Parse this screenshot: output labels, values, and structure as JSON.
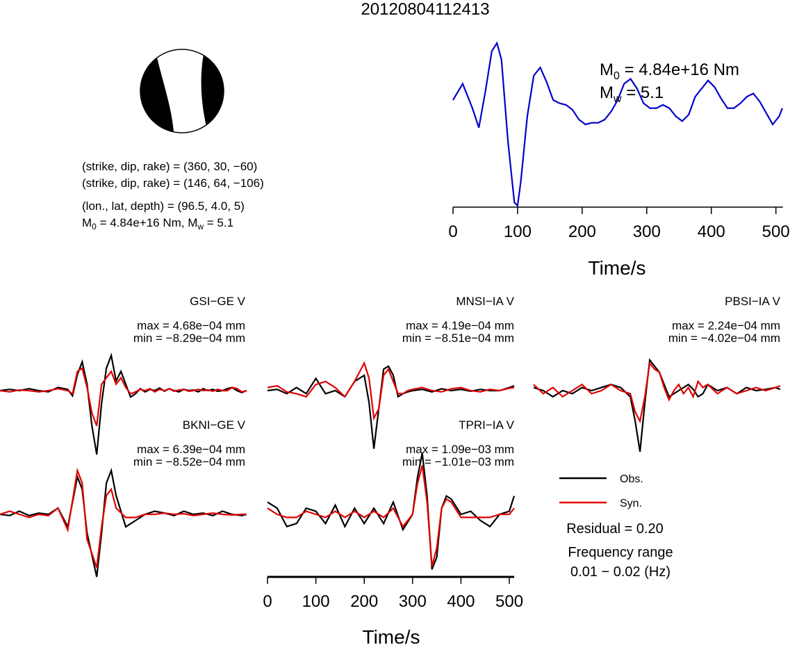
{
  "title": "20120804112413",
  "beachball": {
    "planes": [
      "(strike, dip, rake) = (360, 30, −60)",
      "(strike, dip, rake) = (146, 64, −106)"
    ],
    "location": "(lon., lat, depth) = (96.5, 4.0, 5)",
    "moment_line": {
      "m0_prefix": "M",
      "m0_sub": "0",
      "m0_val": " = 4.84e+16 Nm, M",
      "mw_sub": "w",
      "mw_val": " = 5.1"
    }
  },
  "stf": {
    "m0": {
      "base": "M",
      "sub": "0",
      "value": " = 4.84e+16 Nm"
    },
    "mw": {
      "base": "M",
      "sub": "w",
      "value": " = 5.1"
    }
  },
  "legend": {
    "obs_label": "Obs.",
    "syn_label": "Syn.",
    "residual": "Residual = 0.20",
    "freq_title": "Frequency range",
    "freq_value": "0.01 − 0.02 (Hz)"
  },
  "colors": {
    "observed": "#000000",
    "synthetic": "#e00000",
    "stf": "#0000cc"
  },
  "chart_data": [
    {
      "type": "line",
      "name": "source-time-function",
      "xlabel": "Time/s",
      "xlim": [
        0,
        510
      ],
      "x_ticks": [
        0,
        100,
        200,
        300,
        400,
        500
      ],
      "x_tick_labels": [
        "0",
        "100",
        "200",
        "300",
        "400",
        "500"
      ],
      "x": [
        0,
        15,
        30,
        40,
        50,
        60,
        68,
        75,
        85,
        95,
        100,
        105,
        115,
        125,
        135,
        145,
        155,
        165,
        175,
        185,
        195,
        205,
        215,
        225,
        235,
        245,
        255,
        265,
        275,
        285,
        295,
        305,
        315,
        325,
        335,
        345,
        355,
        365,
        375,
        385,
        395,
        405,
        415,
        425,
        435,
        445,
        455,
        465,
        475,
        485,
        495,
        505,
        510
      ],
      "series": [
        {
          "values": [
            0.65,
            0.75,
            0.6,
            0.48,
            0.7,
            0.95,
            1.0,
            0.9,
            0.4,
            0.02,
            0.0,
            0.15,
            0.55,
            0.8,
            0.85,
            0.76,
            0.65,
            0.63,
            0.62,
            0.59,
            0.53,
            0.5,
            0.51,
            0.51,
            0.53,
            0.58,
            0.65,
            0.75,
            0.78,
            0.72,
            0.63,
            0.6,
            0.6,
            0.62,
            0.6,
            0.55,
            0.52,
            0.56,
            0.67,
            0.72,
            0.77,
            0.73,
            0.66,
            0.6,
            0.6,
            0.63,
            0.67,
            0.69,
            0.64,
            0.57,
            0.5,
            0.55,
            0.6
          ]
        }
      ]
    },
    {
      "type": "line",
      "name": "waveform-fits",
      "xlabel": "Time/s",
      "xlim": [
        0,
        510
      ],
      "x_ticks": [
        0,
        100,
        200,
        300,
        400,
        500
      ],
      "x_tick_labels": [
        "0",
        "100",
        "200",
        "300",
        "400",
        "500"
      ],
      "series_names": [
        "Obs.",
        "Syn."
      ],
      "panels": [
        {
          "station": "GSI−GE V",
          "max": "max = 4.68e−04 mm",
          "min": "min = −8.29e−04 mm",
          "x": [
            0,
            20,
            40,
            60,
            80,
            100,
            120,
            140,
            150,
            160,
            170,
            180,
            190,
            200,
            210,
            220,
            230,
            240,
            250,
            260,
            270,
            280,
            290,
            300,
            310,
            320,
            330,
            340,
            350,
            360,
            370,
            380,
            390,
            400,
            410,
            420,
            430,
            440,
            450,
            460,
            470,
            480,
            490,
            500,
            510
          ],
          "obs": [
            0.0,
            0.02,
            0.0,
            0.03,
            0.0,
            -0.02,
            0.05,
            0.02,
            -0.08,
            0.25,
            0.45,
            0.1,
            -0.55,
            -1.0,
            -0.2,
            0.35,
            0.55,
            0.15,
            0.3,
            0.1,
            -0.1,
            -0.05,
            0.03,
            -0.02,
            0.02,
            0.0,
            0.04,
            -0.01,
            0.03,
            0.0,
            -0.02,
            0.02,
            0.0,
            0.01,
            -0.02,
            0.03,
            0.0,
            0.02,
            -0.01,
            0.0,
            0.03,
            0.05,
            0.0,
            -0.03,
            0.0
          ],
          "syn": [
            0.0,
            -0.02,
            0.01,
            0.0,
            -0.02,
            0.0,
            0.03,
            0.0,
            -0.05,
            0.3,
            0.35,
            0.05,
            -0.35,
            -0.55,
            0.1,
            0.2,
            0.3,
            0.1,
            0.2,
            0.05,
            -0.05,
            -0.02,
            0.02,
            0.0,
            0.03,
            -0.02,
            0.02,
            0.0,
            0.03,
            -0.01,
            0.01,
            0.02,
            -0.01,
            0.0,
            0.02,
            0.0,
            0.01,
            -0.01,
            0.02,
            0.0,
            0.0,
            0.05,
            0.03,
            -0.02,
            0.0
          ]
        },
        {
          "station": "MNSI−IA V",
          "max": "max = 4.19e−04 mm",
          "min": "min = −8.51e−04 mm",
          "x": [
            0,
            20,
            40,
            60,
            80,
            100,
            120,
            140,
            160,
            180,
            200,
            210,
            220,
            230,
            240,
            250,
            260,
            270,
            280,
            290,
            300,
            320,
            340,
            360,
            380,
            400,
            420,
            440,
            460,
            480,
            500,
            510
          ],
          "obs": [
            0.0,
            0.02,
            -0.05,
            0.05,
            -0.05,
            0.2,
            -0.05,
            0.0,
            -0.1,
            0.15,
            0.25,
            -0.2,
            -0.95,
            -0.3,
            0.35,
            0.4,
            0.25,
            -0.1,
            -0.05,
            -0.02,
            0.0,
            0.02,
            -0.02,
            0.03,
            0.0,
            0.02,
            -0.01,
            0.02,
            0.0,
            0.0,
            0.05,
            0.08
          ],
          "syn": [
            0.05,
            0.08,
            -0.02,
            -0.05,
            -0.1,
            0.1,
            0.15,
            0.05,
            -0.1,
            0.15,
            0.45,
            0.2,
            -0.45,
            -0.3,
            0.25,
            0.35,
            0.15,
            -0.05,
            -0.05,
            0.0,
            0.02,
            0.05,
            0.0,
            -0.02,
            0.03,
            0.05,
            0.0,
            -0.02,
            0.02,
            0.0,
            0.04,
            0.05
          ]
        },
        {
          "station": "PBSI−IA V",
          "max": "max = 2.24e−04 mm",
          "min": "min = −4.02e−04 mm",
          "x": [
            0,
            20,
            40,
            60,
            80,
            100,
            120,
            140,
            160,
            180,
            200,
            210,
            220,
            230,
            240,
            250,
            260,
            270,
            280,
            290,
            300,
            310,
            320,
            330,
            340,
            350,
            360,
            380,
            400,
            420,
            440,
            460,
            480,
            500,
            510
          ],
          "obs": [
            0.05,
            0.0,
            -0.1,
            0.0,
            -0.05,
            0.05,
            0.0,
            0.05,
            0.1,
            0.05,
            -0.1,
            -0.5,
            -1.0,
            -0.2,
            0.5,
            0.4,
            0.3,
            0.1,
            -0.1,
            -0.05,
            0.0,
            0.05,
            0.1,
            0.02,
            -0.1,
            -0.05,
            0.1,
            0.0,
            0.05,
            -0.05,
            0.05,
            0.0,
            0.02,
            0.05,
            0.02
          ],
          "syn": [
            0.1,
            -0.05,
            0.05,
            -0.1,
            0.0,
            0.1,
            -0.05,
            0.0,
            0.1,
            0.0,
            -0.05,
            -0.35,
            -0.5,
            -0.1,
            0.45,
            0.35,
            0.3,
            0.05,
            -0.15,
            0.0,
            0.1,
            -0.05,
            0.05,
            -0.1,
            0.15,
            0.05,
            0.1,
            -0.05,
            0.05,
            -0.05,
            0.0,
            0.05,
            0.0,
            0.05,
            0.08
          ]
        },
        {
          "station": "BKNI−GE V",
          "max": "max = 6.39e−04 mm",
          "min": "min = −8.52e−04 mm",
          "x": [
            0,
            20,
            40,
            60,
            80,
            100,
            120,
            140,
            160,
            170,
            180,
            200,
            210,
            220,
            230,
            240,
            260,
            280,
            300,
            320,
            340,
            360,
            380,
            400,
            420,
            440,
            460,
            480,
            500,
            510
          ],
          "obs": [
            0.0,
            -0.02,
            0.05,
            -0.02,
            0.02,
            0.0,
            0.1,
            -0.2,
            0.6,
            0.4,
            -0.3,
            -1.0,
            -0.3,
            0.5,
            0.7,
            0.3,
            -0.2,
            -0.1,
            0.0,
            0.05,
            0.02,
            -0.02,
            0.05,
            0.0,
            0.02,
            -0.02,
            0.05,
            0.0,
            -0.02,
            0.0
          ],
          "syn": [
            0.0,
            0.05,
            0.0,
            -0.05,
            0.0,
            -0.02,
            0.1,
            -0.25,
            0.7,
            0.5,
            -0.4,
            -0.85,
            -0.2,
            0.3,
            0.4,
            0.1,
            -0.05,
            -0.05,
            0.0,
            0.0,
            0.02,
            0.0,
            0.01,
            -0.02,
            0.0,
            0.02,
            0.0,
            -0.01,
            0.0,
            0.0
          ]
        },
        {
          "station": "TPRI−IA V",
          "max": "max = 1.09e−03 mm",
          "min": "min = −1.01e−03 mm",
          "x": [
            0,
            20,
            40,
            60,
            80,
            100,
            120,
            140,
            160,
            180,
            200,
            220,
            240,
            260,
            280,
            300,
            310,
            320,
            330,
            340,
            350,
            360,
            370,
            380,
            400,
            420,
            440,
            460,
            480,
            500,
            510
          ],
          "obs": [
            0.2,
            0.1,
            -0.2,
            -0.15,
            0.1,
            0.05,
            -0.15,
            0.15,
            -0.2,
            0.1,
            -0.15,
            0.1,
            -0.15,
            0.2,
            -0.25,
            0.0,
            0.6,
            1.0,
            0.3,
            -0.9,
            -0.7,
            0.1,
            0.3,
            0.25,
            0.0,
            0.05,
            -0.1,
            -0.2,
            0.0,
            0.05,
            0.3
          ],
          "syn": [
            0.1,
            0.0,
            -0.05,
            -0.05,
            0.05,
            0.0,
            -0.05,
            0.05,
            -0.05,
            0.05,
            -0.05,
            0.05,
            -0.05,
            0.1,
            -0.2,
            0.0,
            0.5,
            0.8,
            0.2,
            -0.85,
            -0.55,
            0.1,
            0.25,
            0.2,
            -0.05,
            -0.05,
            -0.05,
            -0.05,
            0.0,
            0.0,
            0.1
          ]
        }
      ]
    }
  ]
}
